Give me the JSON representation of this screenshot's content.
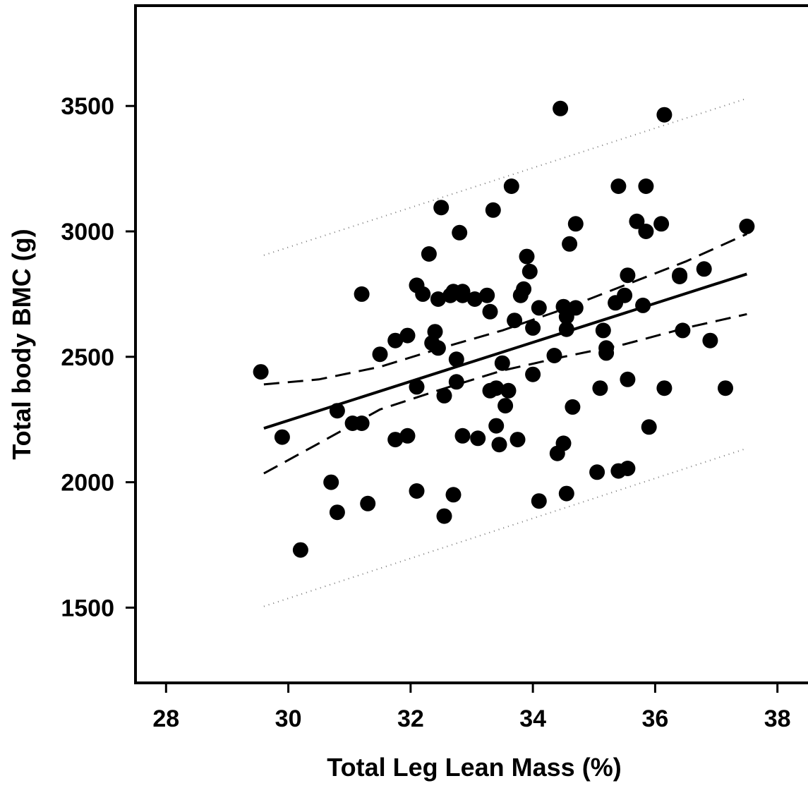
{
  "chart_data": {
    "type": "scatter",
    "title": "",
    "xlabel": "Total Leg Lean Mass (%)",
    "ylabel": "Total body BMC (g)",
    "xlim": [
      27.5,
      38.5
    ],
    "ylim": [
      1200,
      3900
    ],
    "x_ticks": [
      "28",
      "30",
      "32",
      "34",
      "36",
      "38"
    ],
    "y_ticks": [
      "1500",
      "2000",
      "2500",
      "3000",
      "3500"
    ],
    "grid": false,
    "legend": "none",
    "points": [
      [
        29.55,
        2440
      ],
      [
        29.9,
        2180
      ],
      [
        30.2,
        1730
      ],
      [
        30.7,
        2000
      ],
      [
        30.8,
        1880
      ],
      [
        30.8,
        2285
      ],
      [
        31.05,
        2235
      ],
      [
        31.2,
        2235
      ],
      [
        31.2,
        2750
      ],
      [
        31.3,
        1915
      ],
      [
        31.5,
        2510
      ],
      [
        31.75,
        2565
      ],
      [
        31.75,
        2170
      ],
      [
        31.95,
        2585
      ],
      [
        31.95,
        2185
      ],
      [
        32.1,
        2785
      ],
      [
        32.1,
        2380
      ],
      [
        32.1,
        1965
      ],
      [
        32.2,
        2750
      ],
      [
        32.3,
        2910
      ],
      [
        32.35,
        2555
      ],
      [
        32.4,
        2600
      ],
      [
        32.45,
        2535
      ],
      [
        32.45,
        2730
      ],
      [
        32.5,
        3095
      ],
      [
        32.55,
        2345
      ],
      [
        32.55,
        1865
      ],
      [
        32.65,
        2745
      ],
      [
        32.7,
        2760
      ],
      [
        32.7,
        1950
      ],
      [
        32.75,
        2490
      ],
      [
        32.75,
        2400
      ],
      [
        32.8,
        2995
      ],
      [
        32.85,
        2745
      ],
      [
        32.85,
        2760
      ],
      [
        32.85,
        2185
      ],
      [
        33.05,
        2730
      ],
      [
        33.1,
        2175
      ],
      [
        33.25,
        2745
      ],
      [
        33.3,
        2680
      ],
      [
        33.3,
        2365
      ],
      [
        33.35,
        3085
      ],
      [
        33.4,
        2225
      ],
      [
        33.4,
        2375
      ],
      [
        33.45,
        2150
      ],
      [
        33.5,
        2475
      ],
      [
        33.55,
        2305
      ],
      [
        33.6,
        2365
      ],
      [
        33.65,
        3180
      ],
      [
        33.7,
        2645
      ],
      [
        33.75,
        2170
      ],
      [
        33.8,
        2745
      ],
      [
        33.85,
        2770
      ],
      [
        33.9,
        2900
      ],
      [
        33.95,
        2840
      ],
      [
        34.0,
        2615
      ],
      [
        34.0,
        2430
      ],
      [
        34.1,
        2695
      ],
      [
        34.1,
        1925
      ],
      [
        34.35,
        2505
      ],
      [
        34.4,
        2115
      ],
      [
        34.45,
        3490
      ],
      [
        34.5,
        2700
      ],
      [
        34.5,
        2155
      ],
      [
        34.55,
        2660
      ],
      [
        34.55,
        2610
      ],
      [
        34.55,
        1955
      ],
      [
        34.6,
        2950
      ],
      [
        34.65,
        2300
      ],
      [
        34.7,
        3030
      ],
      [
        34.7,
        2695
      ],
      [
        35.05,
        2040
      ],
      [
        35.1,
        2375
      ],
      [
        35.15,
        2605
      ],
      [
        35.2,
        2535
      ],
      [
        35.2,
        2515
      ],
      [
        35.35,
        2715
      ],
      [
        35.4,
        3180
      ],
      [
        35.4,
        2045
      ],
      [
        35.5,
        2745
      ],
      [
        35.55,
        2825
      ],
      [
        35.55,
        2410
      ],
      [
        35.55,
        2055
      ],
      [
        35.7,
        3040
      ],
      [
        35.8,
        2705
      ],
      [
        35.85,
        3180
      ],
      [
        35.85,
        3000
      ],
      [
        35.9,
        2220
      ],
      [
        36.1,
        3030
      ],
      [
        36.15,
        2375
      ],
      [
        36.15,
        3465
      ],
      [
        36.4,
        2825
      ],
      [
        36.4,
        2820
      ],
      [
        36.45,
        2605
      ],
      [
        36.8,
        2850
      ],
      [
        36.9,
        2565
      ],
      [
        37.15,
        2375
      ],
      [
        37.5,
        3020
      ]
    ],
    "regression": {
      "x_range": [
        29.6,
        37.5
      ],
      "fit": [
        2215,
        2830
      ],
      "confidence": {
        "x": [
          29.6,
          30.5,
          31.5,
          32.5,
          33.5,
          34.5,
          35.5,
          36.5,
          37.5
        ],
        "upper": [
          2390,
          2410,
          2460,
          2535,
          2605,
          2690,
          2785,
          2880,
          2990
        ],
        "lower": [
          2035,
          2155,
          2290,
          2370,
          2445,
          2500,
          2550,
          2615,
          2670
        ]
      },
      "prediction": {
        "upper": [
          2905,
          3530
        ],
        "lower": [
          1505,
          2135
        ]
      }
    }
  }
}
